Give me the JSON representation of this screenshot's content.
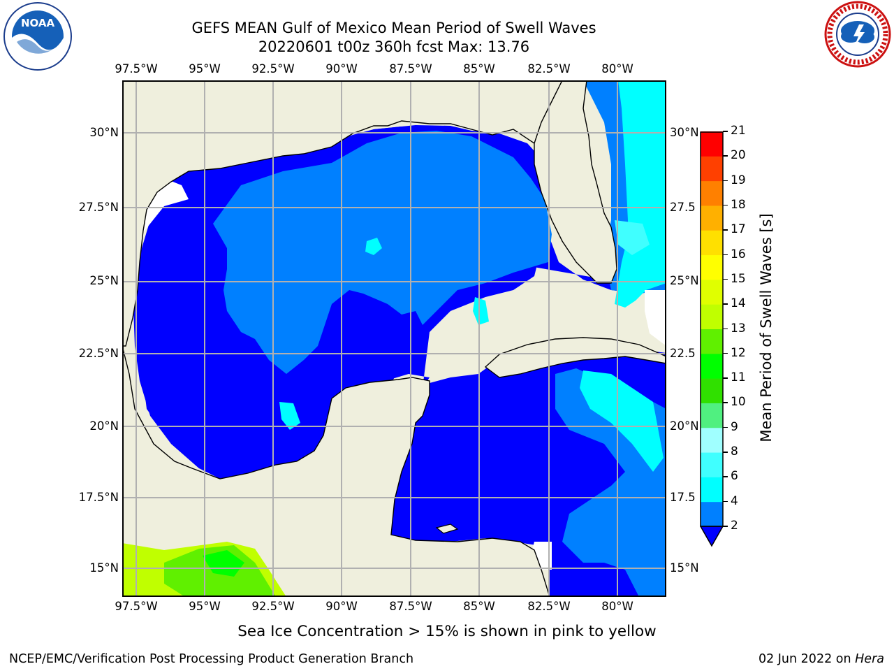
{
  "title_line1": "GEFS MEAN Gulf of Mexico Mean Period of Swell Waves",
  "title_line2": "20220601 t00z 360h fcst   Max: 13.76",
  "logos": {
    "left": {
      "icon": "noaa-logo-icon",
      "text": "NOAA"
    },
    "right": {
      "icon": "national-weather-service-logo-icon"
    }
  },
  "map": {
    "lon_labels": [
      "97.5°W",
      "95°W",
      "92.5°W",
      "90°W",
      "87.5°W",
      "85°W",
      "82.5°W",
      "80°W"
    ],
    "lat_labels_left": [
      "30°N",
      "27.5°N",
      "25°N",
      "22.5°N",
      "20°N",
      "17.5°N",
      "15°N"
    ],
    "lat_labels_right": [
      "30°N",
      "27.5",
      "25°N",
      "22.5",
      "20°N",
      "17.5",
      "15°N"
    ],
    "colors": {
      "land": "#efefdd",
      "coast": "#000000",
      "grid": "#b0b0b0",
      "missing": "#ffffff"
    }
  },
  "colorbar": {
    "label": "Mean Period of Swell Waves [s]",
    "ticks": [
      "2",
      "4",
      "6",
      "8",
      "9",
      "10",
      "11",
      "12",
      "13",
      "14",
      "15",
      "16",
      "17",
      "18",
      "19",
      "20",
      "21"
    ],
    "colors": [
      "#0000ff",
      "#0080ff",
      "#00ffff",
      "#40ffff",
      "#a0ffff",
      "#50f080",
      "#30e000",
      "#00ff00",
      "#60f000",
      "#c0ff00",
      "#e0ff00",
      "#ffff00",
      "#ffe000",
      "#ffb000",
      "#ff8000",
      "#ff4000",
      "#ff0000"
    ]
  },
  "note": "Sea Ice Concentration > 15% is shown in pink to yellow",
  "footer": {
    "left": "NCEP/EMC/Verification Post Processing Product Generation Branch",
    "right_prefix": "02 Jun 2022 on ",
    "right_host": "Hera"
  }
}
